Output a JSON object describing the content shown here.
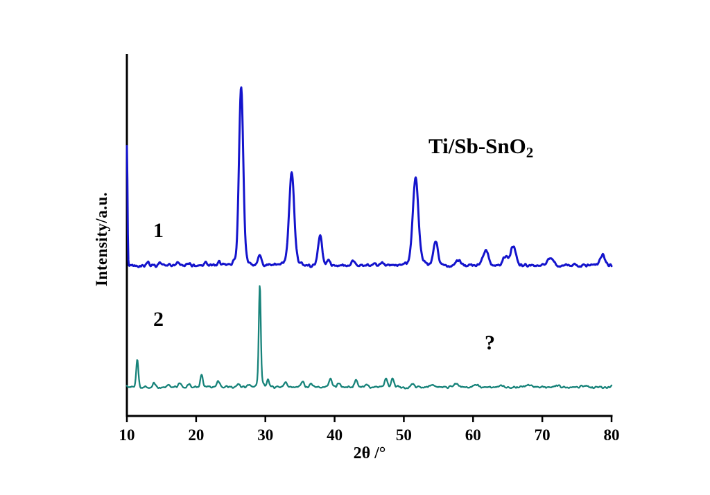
{
  "chart_data": {
    "type": "line",
    "title": "",
    "xlabel": "2θ /°",
    "ylabel": "Intensity/a.u.",
    "xlim": [
      10,
      80
    ],
    "ylim": [
      0,
      206
    ],
    "x_ticks": [
      10,
      20,
      30,
      40,
      50,
      60,
      70,
      80
    ],
    "grid": false,
    "legend": "none",
    "annotations": [
      {
        "text": "Ti/Sb-SnO",
        "sub": "2",
        "x": 55,
        "y": 160
      },
      {
        "text": "1",
        "x": 14.5,
        "y": 105
      },
      {
        "text": "2",
        "x": 14.5,
        "y": 56
      },
      {
        "text": "?",
        "x": 62.5,
        "y": 42
      }
    ],
    "series": [
      {
        "name": "1",
        "color": "#1414cc",
        "baseline": 86,
        "peaks": [
          [
            10.0,
            68,
            0.12
          ],
          [
            13.0,
            2,
            0.3
          ],
          [
            14.8,
            1.5,
            0.3
          ],
          [
            17.4,
            2,
            0.3
          ],
          [
            19.0,
            1.5,
            0.3
          ],
          [
            21.4,
            2.5,
            0.3
          ],
          [
            23.4,
            2,
            0.3
          ],
          [
            26.5,
            96,
            0.42
          ],
          [
            26.5,
            6,
            1.1
          ],
          [
            29.2,
            7,
            0.3
          ],
          [
            33.8,
            49,
            0.5
          ],
          [
            33.8,
            4,
            1.2
          ],
          [
            37.9,
            17,
            0.42
          ],
          [
            39.1,
            3,
            0.35
          ],
          [
            42.7,
            2.5,
            0.4
          ],
          [
            47.0,
            1.5,
            0.4
          ],
          [
            51.7,
            46,
            0.55
          ],
          [
            51.7,
            4,
            1.3
          ],
          [
            54.6,
            14,
            0.45
          ],
          [
            57.8,
            3,
            0.5
          ],
          [
            61.8,
            9,
            0.55
          ],
          [
            64.6,
            5,
            0.5
          ],
          [
            65.8,
            11,
            0.55
          ],
          [
            71.2,
            4,
            0.6
          ],
          [
            78.7,
            6,
            0.5
          ]
        ]
      },
      {
        "name": "2",
        "color": "#17837a",
        "baseline": 16.5,
        "peaks": [
          [
            11.5,
            16,
            0.22
          ],
          [
            13.9,
            2,
            0.25
          ],
          [
            16.0,
            1.5,
            0.3
          ],
          [
            17.6,
            2,
            0.3
          ],
          [
            19.0,
            1.5,
            0.3
          ],
          [
            20.8,
            7,
            0.25
          ],
          [
            23.2,
            3.5,
            0.3
          ],
          [
            26.1,
            2,
            0.3
          ],
          [
            27.6,
            1.5,
            0.3
          ],
          [
            29.2,
            54,
            0.2
          ],
          [
            29.2,
            4,
            0.6
          ],
          [
            30.4,
            4,
            0.25
          ],
          [
            32.9,
            3,
            0.3
          ],
          [
            35.4,
            3.5,
            0.3
          ],
          [
            36.6,
            2,
            0.3
          ],
          [
            39.4,
            5,
            0.3
          ],
          [
            40.6,
            2,
            0.3
          ],
          [
            43.1,
            4,
            0.3
          ],
          [
            44.6,
            1.5,
            0.3
          ],
          [
            47.4,
            5,
            0.28
          ],
          [
            48.4,
            5,
            0.28
          ],
          [
            51.2,
            1.5,
            0.4
          ],
          [
            54.0,
            1.2,
            0.4
          ],
          [
            57.6,
            1.8,
            0.4
          ],
          [
            60.5,
            1,
            0.5
          ],
          [
            64.0,
            1,
            0.5
          ],
          [
            68.0,
            1,
            0.5
          ],
          [
            72.0,
            0.8,
            0.5
          ],
          [
            76.0,
            0.8,
            0.5
          ]
        ]
      }
    ]
  }
}
